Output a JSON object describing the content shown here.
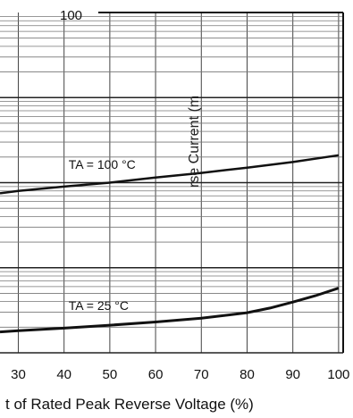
{
  "chart_data": {
    "type": "line",
    "title": "",
    "xlabel": "t of Rated Peak Reverse Voltage (%)",
    "ylabel": "rse Current (m",
    "x_ticks": [
      30,
      40,
      50,
      60,
      70,
      80,
      90,
      100
    ],
    "y_tick_visible": "100",
    "xlim": [
      26,
      101
    ],
    "y_scale": "log",
    "grid": true,
    "series": [
      {
        "name": "TA = 25 °C",
        "x": [
          26,
          30,
          40,
          50,
          60,
          70,
          80,
          85,
          90,
          95,
          100
        ],
        "y": [
          0.0176,
          0.0182,
          0.0195,
          0.0211,
          0.023,
          0.0255,
          0.0296,
          0.0336,
          0.0395,
          0.047,
          0.0575
        ]
      },
      {
        "name": "TA = 100 °C",
        "x": [
          26,
          30,
          40,
          50,
          60,
          70,
          80,
          90,
          100
        ],
        "y": [
          0.75,
          0.8,
          0.9,
          1.0,
          1.15,
          1.3,
          1.5,
          1.75,
          2.1
        ]
      }
    ],
    "annotations": [
      {
        "text": "TA = 25 °C",
        "series": 0
      },
      {
        "text": "TA = 100 °C",
        "series": 1
      }
    ]
  }
}
